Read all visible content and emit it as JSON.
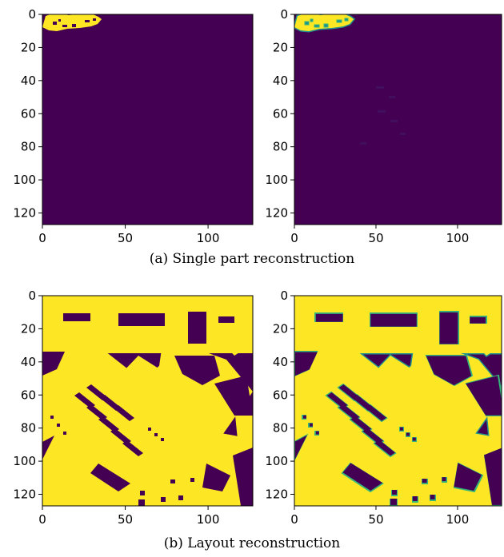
{
  "figure": {
    "captions": {
      "a": "(a)  Single part reconstruction",
      "b": "(b)  Layout reconstruction"
    },
    "colors": {
      "background": "#440154",
      "foreground": "#fde725",
      "edge": "#21918c",
      "edge_light": "#35b779"
    }
  },
  "chart_data": [
    {
      "type": "heatmap",
      "panel": "a-left",
      "xlim": [
        0,
        127
      ],
      "ylim": [
        127,
        0
      ],
      "x_ticks": [
        "0",
        "50",
        "100"
      ],
      "y_ticks": [
        "0",
        "20",
        "40",
        "60",
        "80",
        "100",
        "120"
      ],
      "content": "single yellow part at top-left, cols ~2-37, rows ~4-12",
      "edge_style": "sharp"
    },
    {
      "type": "heatmap",
      "panel": "a-right",
      "xlim": [
        0,
        127
      ],
      "ylim": [
        127,
        0
      ],
      "x_ticks": [
        "0",
        "50",
        "100"
      ],
      "y_ticks": [
        "0",
        "20",
        "40",
        "60",
        "80",
        "100",
        "120"
      ],
      "content": "reconstructed single part, soft teal edges",
      "edge_style": "soft"
    },
    {
      "type": "heatmap",
      "panel": "b-left",
      "xlim": [
        0,
        127
      ],
      "ylim": [
        127,
        0
      ],
      "x_ticks": [
        "0",
        "50",
        "100"
      ],
      "y_ticks": [
        "0",
        "20",
        "40",
        "60",
        "80",
        "100",
        "120"
      ],
      "content": "full layout of many yellow parts",
      "edge_style": "sharp"
    },
    {
      "type": "heatmap",
      "panel": "b-right",
      "xlim": [
        0,
        127
      ],
      "ylim": [
        127,
        0
      ],
      "x_ticks": [
        "0",
        "50",
        "100"
      ],
      "y_ticks": [
        "0",
        "20",
        "40",
        "60",
        "80",
        "100",
        "120"
      ],
      "content": "reconstructed layout, soft teal edges",
      "edge_style": "soft"
    }
  ]
}
